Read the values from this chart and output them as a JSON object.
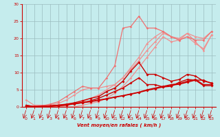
{
  "background_color": "#c5eced",
  "grid_color": "#9bbcbe",
  "xlabel": "Vent moyen/en rafales ( km/h )",
  "xlim": [
    -0.5,
    23.5
  ],
  "ylim": [
    0,
    30
  ],
  "xticks": [
    0,
    1,
    2,
    3,
    4,
    5,
    6,
    7,
    8,
    9,
    10,
    11,
    12,
    13,
    14,
    15,
    16,
    17,
    18,
    19,
    20,
    21,
    22,
    23
  ],
  "yticks": [
    0,
    5,
    10,
    15,
    20,
    25,
    30
  ],
  "lines": [
    {
      "x": [
        0,
        1,
        2,
        3,
        4,
        5,
        6,
        7,
        8,
        9,
        10,
        11,
        12,
        13,
        14,
        15,
        16,
        17,
        18,
        19,
        20,
        21,
        22,
        23
      ],
      "y": [
        0.0,
        0.0,
        0.0,
        0.0,
        0.0,
        0.0,
        0.0,
        0.5,
        1.0,
        1.5,
        2.5,
        4.0,
        6.0,
        8.5,
        11.5,
        14.5,
        17.5,
        20.5,
        19.0,
        19.5,
        21.5,
        19.0,
        16.5,
        21.0
      ],
      "color": "#f09090",
      "lw": 0.9,
      "marker": "D",
      "ms": 1.8,
      "zorder": 2
    },
    {
      "x": [
        0,
        1,
        2,
        3,
        4,
        5,
        6,
        7,
        8,
        9,
        10,
        11,
        12,
        13,
        14,
        15,
        16,
        17,
        18,
        19,
        20,
        21,
        22,
        23
      ],
      "y": [
        0.0,
        0.0,
        0.0,
        0.0,
        0.0,
        0.5,
        1.0,
        1.5,
        2.5,
        3.5,
        5.0,
        6.5,
        8.5,
        11.0,
        13.5,
        16.5,
        19.0,
        21.5,
        20.5,
        20.0,
        21.5,
        20.5,
        20.0,
        22.0
      ],
      "color": "#f09090",
      "lw": 0.9,
      "marker": "D",
      "ms": 1.8,
      "zorder": 2
    },
    {
      "x": [
        0,
        1,
        2,
        3,
        4,
        5,
        6,
        7,
        8,
        9,
        10,
        11,
        12,
        13,
        14,
        15,
        16,
        17,
        18,
        19,
        20,
        21,
        22,
        23
      ],
      "y": [
        2.0,
        0.5,
        0.5,
        0.5,
        1.0,
        2.0,
        3.5,
        5.0,
        5.5,
        5.5,
        6.0,
        6.5,
        8.5,
        11.5,
        14.5,
        18.5,
        20.5,
        22.0,
        20.5,
        19.5,
        20.5,
        18.5,
        17.0,
        21.0
      ],
      "color": "#f09090",
      "lw": 0.9,
      "marker": "D",
      "ms": 1.8,
      "zorder": 2
    },
    {
      "x": [
        0,
        1,
        2,
        3,
        4,
        5,
        6,
        7,
        8,
        9,
        10,
        11,
        12,
        13,
        14,
        15,
        16,
        17,
        18,
        19,
        20,
        21,
        22,
        23
      ],
      "y": [
        0.5,
        0.1,
        0.3,
        0.8,
        1.5,
        3.0,
        4.5,
        6.0,
        5.5,
        5.5,
        8.5,
        12.0,
        23.0,
        23.5,
        26.5,
        23.0,
        23.0,
        22.0,
        20.5,
        19.5,
        20.5,
        19.5,
        19.5,
        22.0
      ],
      "color": "#f07070",
      "lw": 0.9,
      "marker": "D",
      "ms": 1.8,
      "zorder": 3
    },
    {
      "x": [
        0,
        1,
        2,
        3,
        4,
        5,
        6,
        7,
        8,
        9,
        10,
        11,
        12,
        13,
        14,
        15,
        16,
        17,
        18,
        19,
        20,
        21,
        22,
        23
      ],
      "y": [
        0.2,
        0.1,
        0.1,
        0.3,
        0.5,
        0.8,
        1.2,
        1.8,
        2.5,
        3.0,
        4.5,
        5.5,
        7.5,
        10.5,
        13.0,
        9.5,
        9.5,
        8.5,
        7.5,
        8.0,
        9.5,
        9.0,
        7.5,
        7.0
      ],
      "color": "#cc0000",
      "lw": 1.0,
      "marker": "D",
      "ms": 2.0,
      "zorder": 4
    },
    {
      "x": [
        0,
        1,
        2,
        3,
        4,
        5,
        6,
        7,
        8,
        9,
        10,
        11,
        12,
        13,
        14,
        15,
        16,
        17,
        18,
        19,
        20,
        21,
        22,
        23
      ],
      "y": [
        0.5,
        0.1,
        0.2,
        0.3,
        0.5,
        0.7,
        1.0,
        1.3,
        1.6,
        2.0,
        2.4,
        2.9,
        3.3,
        3.8,
        4.3,
        5.0,
        5.5,
        6.0,
        6.5,
        6.8,
        7.5,
        8.0,
        6.5,
        6.5
      ],
      "color": "#cc0000",
      "lw": 1.0,
      "marker": "D",
      "ms": 2.0,
      "zorder": 4
    },
    {
      "x": [
        0,
        1,
        2,
        3,
        4,
        5,
        6,
        7,
        8,
        9,
        10,
        11,
        12,
        13,
        14,
        15,
        16,
        17,
        18,
        19,
        20,
        21,
        22,
        23
      ],
      "y": [
        0.2,
        0.0,
        0.1,
        0.2,
        0.4,
        0.6,
        0.9,
        1.2,
        1.5,
        1.9,
        2.3,
        2.8,
        3.2,
        3.7,
        4.2,
        4.8,
        5.3,
        5.8,
        6.3,
        6.6,
        7.2,
        7.8,
        6.2,
        6.2
      ],
      "color": "#cc0000",
      "lw": 1.0,
      "marker": "D",
      "ms": 2.0,
      "zorder": 4
    },
    {
      "x": [
        0,
        1,
        2,
        3,
        4,
        5,
        6,
        7,
        8,
        9,
        10,
        11,
        12,
        13,
        14,
        15,
        16,
        17,
        18,
        19,
        20,
        21,
        22,
        23
      ],
      "y": [
        0.2,
        0.1,
        0.1,
        0.2,
        0.3,
        0.5,
        0.9,
        1.2,
        1.8,
        2.5,
        3.5,
        4.5,
        5.5,
        7.0,
        8.5,
        6.5,
        6.5,
        5.8,
        6.0,
        7.2,
        8.0,
        7.8,
        7.8,
        6.8
      ],
      "color": "#cc0000",
      "lw": 1.0,
      "marker": "D",
      "ms": 2.0,
      "zorder": 4
    }
  ],
  "tick_color": "#cc0000",
  "label_color": "#cc0000",
  "spine_color": "#cc0000",
  "arrow_color": "#cc0000"
}
